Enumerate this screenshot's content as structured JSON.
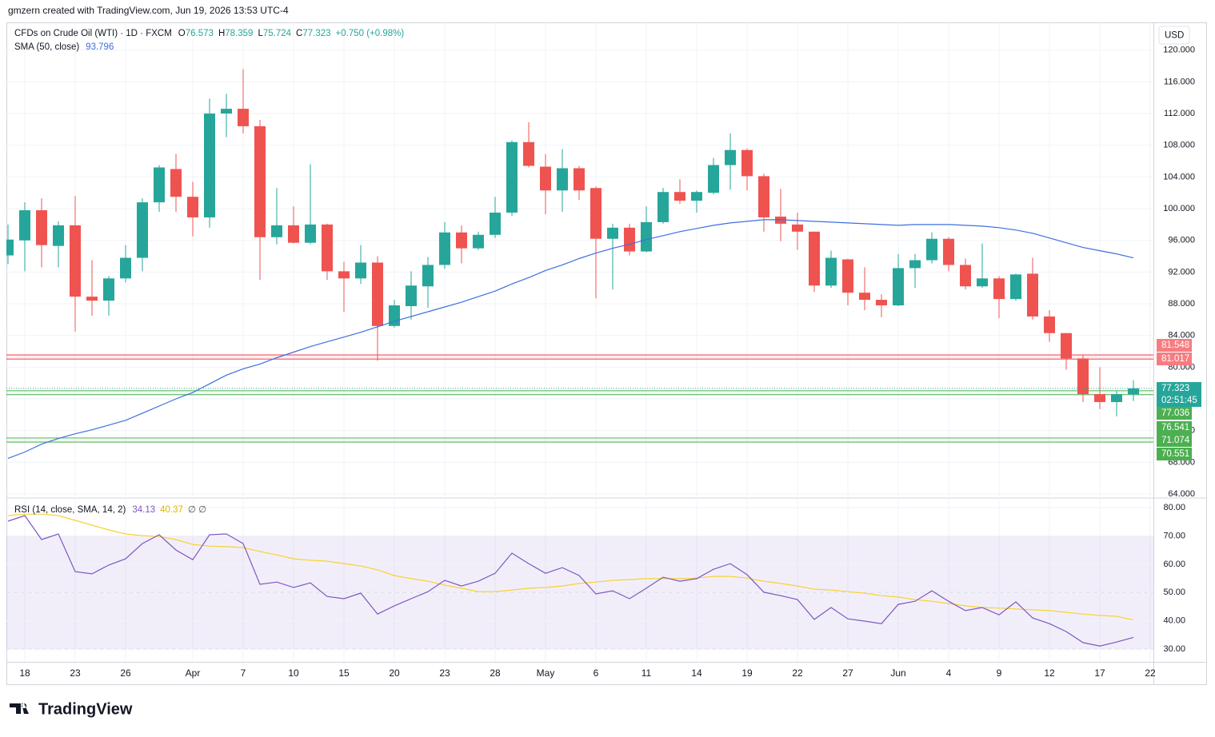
{
  "header": "gmzern created with TradingView.com, Jun 19, 2026 13:53 UTC-4",
  "footer": "TradingView",
  "chart_data": {
    "type": "candlestick",
    "symbol": "CFDs on Crude Oil (WTI) · 1D · FXCM",
    "ohlc_letters": [
      "O",
      "H",
      "L",
      "C"
    ],
    "change": "+0.750 (+0.98%)",
    "currency": "USD",
    "up_color": "#26a69a",
    "down_color": "#ef5350",
    "open": [
      94.1,
      96.0,
      99.8,
      95.3,
      97.9,
      88.9,
      88.4,
      91.2,
      93.8,
      100.8,
      105.0,
      101.5,
      98.9,
      112.0,
      112.6,
      110.4,
      96.4,
      97.9,
      95.7,
      98.0,
      92.1,
      91.2,
      93.2,
      85.2,
      87.7,
      90.2,
      92.9,
      97.0,
      95.0,
      96.7,
      99.5,
      108.4,
      105.3,
      102.3,
      105.1,
      102.6,
      96.2,
      97.6,
      94.6,
      98.3,
      102.1,
      101.0,
      102.0,
      105.5,
      107.4,
      104.1,
      99.0,
      98.0,
      97.1,
      90.3,
      93.6,
      89.4,
      88.5,
      87.8,
      92.5,
      93.5,
      96.2,
      92.9,
      90.2,
      91.2,
      88.6,
      91.8,
      86.4,
      84.3,
      81.1,
      76.6,
      75.6,
      76.573
    ],
    "high": [
      98.0,
      100.8,
      101.3,
      98.4,
      101.6,
      93.5,
      91.5,
      95.4,
      101.3,
      105.5,
      106.9,
      103.4,
      113.9,
      114.5,
      117.6,
      111.2,
      102.6,
      100.3,
      105.6,
      98.1,
      93.3,
      95.4,
      94.0,
      88.5,
      92.1,
      93.9,
      98.3,
      97.9,
      97.1,
      101.5,
      108.6,
      110.9,
      106.9,
      107.5,
      105.4,
      102.8,
      98.1,
      98.1,
      100.3,
      102.6,
      103.7,
      102.3,
      106.4,
      109.5,
      107.6,
      104.4,
      102.5,
      99.5,
      97.1,
      94.7,
      93.7,
      92.6,
      89.2,
      94.3,
      94.3,
      97.0,
      96.4,
      93.7,
      95.6,
      91.5,
      91.8,
      93.8,
      87.2,
      84.3,
      81.5,
      80.0,
      77.0,
      78.359
    ],
    "low": [
      93.0,
      92.1,
      92.6,
      92.6,
      84.5,
      86.5,
      86.5,
      90.7,
      92.1,
      99.6,
      99.6,
      96.5,
      97.6,
      109.0,
      109.5,
      91.0,
      95.5,
      95.6,
      95.5,
      91.0,
      87.0,
      90.5,
      80.8,
      85.0,
      86.0,
      87.5,
      92.4,
      93.1,
      94.8,
      96.3,
      99.1,
      105.2,
      99.3,
      99.6,
      101.1,
      88.7,
      89.8,
      94.1,
      94.5,
      98.1,
      100.6,
      99.5,
      101.8,
      102.4,
      102.3,
      97.1,
      95.9,
      94.8,
      89.5,
      90.0,
      87.8,
      87.2,
      86.3,
      87.7,
      90.0,
      93.1,
      92.1,
      89.8,
      90.0,
      86.2,
      88.4,
      86.0,
      83.2,
      79.7,
      75.6,
      74.7,
      73.8,
      75.724
    ],
    "close": [
      96.1,
      99.8,
      95.4,
      97.9,
      88.9,
      88.4,
      91.2,
      93.8,
      100.8,
      105.2,
      101.5,
      98.9,
      112.0,
      112.6,
      110.4,
      96.4,
      97.9,
      95.7,
      98.0,
      92.1,
      91.2,
      93.2,
      85.2,
      87.8,
      90.3,
      92.9,
      97.0,
      95.0,
      96.7,
      99.5,
      108.4,
      105.4,
      102.3,
      105.1,
      102.3,
      96.2,
      97.6,
      94.6,
      98.3,
      102.1,
      101.0,
      102.1,
      105.5,
      107.4,
      104.1,
      98.9,
      98.1,
      97.1,
      90.3,
      93.8,
      89.4,
      88.5,
      87.8,
      92.5,
      93.5,
      96.2,
      92.9,
      90.2,
      91.2,
      88.6,
      91.7,
      86.4,
      84.3,
      81.1,
      76.6,
      75.6,
      76.6,
      77.323
    ],
    "xlim": [
      -0.5,
      68.5
    ],
    "xticks": [
      {
        "value": 1,
        "label": "18"
      },
      {
        "value": 4,
        "label": "23"
      },
      {
        "value": 7,
        "label": "26"
      },
      {
        "value": 11,
        "label": "Apr"
      },
      {
        "value": 14,
        "label": "7"
      },
      {
        "value": 17,
        "label": "10"
      },
      {
        "value": 20,
        "label": "15"
      },
      {
        "value": 23,
        "label": "20"
      },
      {
        "value": 26,
        "label": "23"
      },
      {
        "value": 29,
        "label": "28"
      },
      {
        "value": 32,
        "label": "May"
      },
      {
        "value": 35,
        "label": "6"
      },
      {
        "value": 38,
        "label": "11"
      },
      {
        "value": 41,
        "label": "14"
      },
      {
        "value": 44,
        "label": "19"
      },
      {
        "value": 47,
        "label": "22"
      },
      {
        "value": 50,
        "label": "27"
      },
      {
        "value": 53,
        "label": "Jun"
      },
      {
        "value": 56,
        "label": "4"
      },
      {
        "value": 59,
        "label": "9"
      },
      {
        "value": 62,
        "label": "12"
      },
      {
        "value": 65,
        "label": "17"
      },
      {
        "value": 68,
        "label": "22"
      }
    ],
    "ylim": [
      63.6,
      123.5
    ],
    "yticks": [
      {
        "value": 64,
        "label": "64.000"
      },
      {
        "value": 68,
        "label": "68.000"
      },
      {
        "value": 72,
        "label": "72.000"
      },
      {
        "value": 76,
        "label": "76.000"
      },
      {
        "value": 80,
        "label": "80.000"
      },
      {
        "value": 84,
        "label": "84.000"
      },
      {
        "value": 88,
        "label": "88.000"
      },
      {
        "value": 92,
        "label": "92.000"
      },
      {
        "value": 96,
        "label": "96.000"
      },
      {
        "value": 100,
        "label": "100.000"
      },
      {
        "value": 104,
        "label": "104.000"
      },
      {
        "value": 108,
        "label": "108.000"
      },
      {
        "value": 112,
        "label": "112.000"
      },
      {
        "value": 116,
        "label": "116.000"
      },
      {
        "value": 120,
        "label": "120.000"
      }
    ],
    "grid": true,
    "sma": {
      "name": "SMA (50, close)",
      "color": "#3d6fe0",
      "values": [
        68.5,
        69.3,
        70.3,
        71.0,
        71.6,
        72.1,
        72.7,
        73.3,
        74.2,
        75.1,
        76.0,
        76.8,
        77.9,
        79.0,
        79.8,
        80.4,
        81.2,
        81.9,
        82.6,
        83.2,
        83.8,
        84.4,
        85.1,
        85.8,
        86.4,
        87.0,
        87.6,
        88.2,
        88.9,
        89.6,
        90.5,
        91.3,
        92.2,
        92.9,
        93.7,
        94.4,
        95.0,
        95.5,
        96.1,
        96.6,
        97.1,
        97.5,
        97.9,
        98.2,
        98.4,
        98.6,
        98.6,
        98.5,
        98.4,
        98.3,
        98.2,
        98.1,
        98.0,
        97.9,
        98.0,
        98.0,
        98.0,
        97.9,
        97.8,
        97.6,
        97.3,
        96.9,
        96.3,
        95.7,
        95.1,
        94.7,
        94.3,
        93.796
      ]
    },
    "levels": [
      {
        "value": 81.548,
        "color": "#f23645",
        "label_color": "#f77c80"
      },
      {
        "value": 81.017,
        "color": "#f23645",
        "label_color": "#f77c80"
      },
      {
        "value": 77.036,
        "color": "#4caf50",
        "label_color": "#4caf50"
      },
      {
        "value": 76.541,
        "color": "#4caf50",
        "label_color": "#4caf50"
      },
      {
        "value": 71.074,
        "color": "#4caf50",
        "label_color": "#4caf50"
      },
      {
        "value": 70.551,
        "color": "#4caf50",
        "label_color": "#4caf50"
      }
    ],
    "countdown": "02:51:45",
    "rsi": {
      "name": "RSI (14, close, SMA, 14, 2)",
      "color": "#7e57c2",
      "sma_color": "#f5d335",
      "extra": "∅ ∅",
      "values": [
        75.2,
        77.2,
        68.7,
        70.7,
        57.4,
        56.6,
        59.7,
        61.9,
        67.3,
        70.4,
        65.0,
        61.6,
        70.4,
        70.7,
        67.3,
        52.9,
        53.7,
        51.8,
        53.4,
        48.6,
        47.8,
        49.8,
        42.4,
        45.3,
        47.8,
        50.3,
        54.3,
        52.3,
        54.0,
        56.8,
        63.9,
        60.2,
        56.8,
        58.8,
        56.0,
        49.5,
        50.6,
        47.8,
        51.5,
        55.4,
        54.0,
        54.9,
        58.2,
        60.2,
        56.3,
        50.1,
        48.9,
        47.5,
        40.5,
        44.7,
        40.7,
        39.9,
        39.0,
        45.8,
        46.9,
        50.6,
        46.9,
        43.6,
        44.7,
        42.1,
        46.7,
        41.0,
        39.0,
        36.2,
        32.3,
        31.1,
        32.5,
        34.13
      ],
      "sma_values": [
        77.2,
        77.7,
        77.7,
        77.2,
        75.5,
        73.8,
        72.1,
        70.7,
        70.1,
        69.8,
        68.7,
        67.0,
        66.4,
        66.2,
        65.9,
        64.5,
        63.3,
        61.9,
        61.4,
        61.1,
        60.2,
        59.4,
        58.0,
        56.0,
        54.9,
        54.0,
        52.6,
        51.5,
        50.3,
        50.3,
        50.9,
        51.5,
        51.8,
        52.3,
        53.2,
        53.7,
        54.3,
        54.6,
        54.9,
        54.9,
        54.9,
        55.1,
        55.7,
        55.7,
        55.1,
        54.0,
        53.2,
        52.3,
        51.2,
        50.9,
        50.3,
        49.8,
        48.9,
        48.4,
        47.5,
        46.9,
        46.1,
        45.3,
        44.7,
        44.5,
        44.2,
        43.9,
        43.6,
        43.0,
        42.4,
        41.9,
        41.6,
        40.37
      ],
      "ylim": [
        25.5,
        83.4
      ],
      "yticks": [
        {
          "value": 30,
          "label": "30.00"
        },
        {
          "value": 40,
          "label": "40.00"
        },
        {
          "value": 50,
          "label": "50.00"
        },
        {
          "value": 60,
          "label": "60.00"
        },
        {
          "value": 70,
          "label": "70.00"
        },
        {
          "value": 80,
          "label": "80.00"
        }
      ],
      "band": [
        30,
        70
      ],
      "mid": 50
    }
  }
}
